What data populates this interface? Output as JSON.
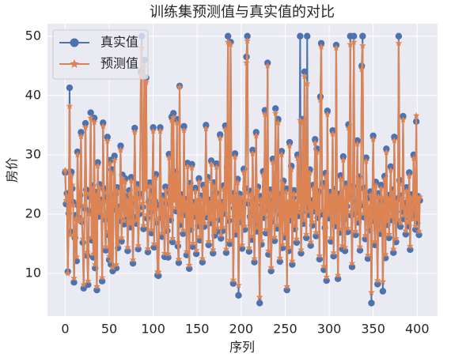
{
  "chart_data": {
    "type": "line",
    "title": "训练集预测值与真实值的对比",
    "xlabel": "序列",
    "ylabel": "房价",
    "xlim": [
      -20.15,
      423.15
    ],
    "ylim": [
      2.8,
      52.1
    ],
    "xticks": [
      0,
      50,
      100,
      150,
      200,
      250,
      300,
      350,
      400
    ],
    "yticks": [
      10,
      20,
      30,
      40,
      50
    ],
    "grid": true,
    "legend": "upper left",
    "x": [
      0,
      1,
      2,
      3,
      4,
      5,
      6,
      7,
      8,
      9,
      10,
      11,
      12,
      13,
      14,
      15,
      16,
      17,
      18,
      19,
      20,
      21,
      22,
      23,
      24,
      25,
      26,
      27,
      28,
      29,
      30,
      31,
      32,
      33,
      34,
      35,
      36,
      37,
      38,
      39,
      40,
      41,
      42,
      43,
      44,
      45,
      46,
      47,
      48,
      49,
      50,
      51,
      52,
      53,
      54,
      55,
      56,
      57,
      58,
      59,
      60,
      61,
      62,
      63,
      64,
      65,
      66,
      67,
      68,
      69,
      70,
      71,
      72,
      73,
      74,
      75,
      76,
      77,
      78,
      79,
      80,
      81,
      82,
      83,
      84,
      85,
      86,
      87,
      88,
      89,
      90,
      91,
      92,
      93,
      94,
      95,
      96,
      97,
      98,
      99,
      100,
      101,
      102,
      103,
      104,
      105,
      106,
      107,
      108,
      109,
      110,
      111,
      112,
      113,
      114,
      115,
      116,
      117,
      118,
      119,
      120,
      121,
      122,
      123,
      124,
      125,
      126,
      127,
      128,
      129,
      130,
      131,
      132,
      133,
      134,
      135,
      136,
      137,
      138,
      139,
      140,
      141,
      142,
      143,
      144,
      145,
      146,
      147,
      148,
      149,
      150,
      151,
      152,
      153,
      154,
      155,
      156,
      157,
      158,
      159,
      160,
      161,
      162,
      163,
      164,
      165,
      166,
      167,
      168,
      169,
      170,
      171,
      172,
      173,
      174,
      175,
      176,
      177,
      178,
      179,
      180,
      181,
      182,
      183,
      184,
      185,
      186,
      187,
      188,
      189,
      190,
      191,
      192,
      193,
      194,
      195,
      196,
      197,
      198,
      199,
      200,
      201,
      202,
      203,
      204,
      205,
      206,
      207,
      208,
      209,
      210,
      211,
      212,
      213,
      214,
      215,
      216,
      217,
      218,
      219,
      220,
      221,
      222,
      223,
      224,
      225,
      226,
      227,
      228,
      229,
      230,
      231,
      232,
      233,
      234,
      235,
      236,
      237,
      238,
      239,
      240,
      241,
      242,
      243,
      244,
      245,
      246,
      247,
      248,
      249,
      250,
      251,
      252,
      253,
      254,
      255,
      256,
      257,
      258,
      259,
      260,
      261,
      262,
      263,
      264,
      265,
      266,
      267,
      268,
      269,
      270,
      271,
      272,
      273,
      274,
      275,
      276,
      277,
      278,
      279,
      280,
      281,
      282,
      283,
      284,
      285,
      286,
      287,
      288,
      289,
      290,
      291,
      292,
      293,
      294,
      295,
      296,
      297,
      298,
      299,
      300,
      301,
      302,
      303,
      304,
      305,
      306,
      307,
      308,
      309,
      310,
      311,
      312,
      313,
      314,
      315,
      316,
      317,
      318,
      319,
      320,
      321,
      322,
      323,
      324,
      325,
      326,
      327,
      328,
      329,
      330,
      331,
      332,
      333,
      334,
      335,
      336,
      337,
      338,
      339,
      340,
      341,
      342,
      343,
      344,
      345,
      346,
      347,
      348,
      349,
      350,
      351,
      352,
      353,
      354,
      355,
      356,
      357,
      358,
      359,
      360,
      361,
      362,
      363,
      364,
      365,
      366,
      367,
      368,
      369,
      370,
      371,
      372,
      373,
      374,
      375,
      376,
      377,
      378,
      379,
      380,
      381,
      382,
      383,
      384,
      385,
      386,
      387,
      388,
      389,
      390,
      391,
      392,
      393,
      394,
      395,
      396,
      397,
      398,
      399,
      400,
      401,
      402,
      403
    ],
    "series": [
      {
        "name": "真实值",
        "color": "#4c72b0",
        "marker": "circle",
        "values": [
          27.0,
          21.7,
          23.5,
          10.3,
          20.1,
          41.3,
          17.0,
          27.1,
          24.3,
          22.0,
          8.5,
          16.0,
          19.8,
          12.1,
          30.5,
          21.4,
          19.3,
          23.2,
          33.8,
          18.7,
          15.2,
          7.5,
          21.0,
          35.3,
          24.1,
          13.0,
          8.1,
          20.5,
          22.9,
          37.1,
          15.6,
          24.8,
          12.7,
          36.2,
          10.9,
          23.7,
          7.2,
          28.7,
          19.6,
          25.0,
          19.9,
          22.4,
          8.7,
          35.4,
          24.3,
          19.1,
          13.9,
          22.8,
          33.0,
          16.5,
          12.3,
          29.1,
          11.5,
          27.5,
          10.4,
          20.8,
          29.8,
          23.3,
          10.9,
          24.5,
          14.3,
          21.2,
          18.9,
          31.5,
          15.4,
          26.6,
          22.2,
          18.3,
          26.0,
          19.2,
          23.0,
          13.8,
          20.6,
          24.0,
          17.8,
          26.2,
          21.9,
          11.7,
          19.5,
          34.5,
          22.6,
          18.4,
          25.0,
          14.1,
          20.0,
          23.4,
          44.0,
          50.0,
          21.2,
          17.5,
          46.0,
          24.7,
          43.0,
          19.3,
          13.6,
          22.1,
          25.3,
          20.4,
          16.8,
          23.9,
          34.6,
          14.4,
          22.2,
          26.7,
          18.6,
          9.7,
          9.6,
          21.5,
          34.6,
          19.4,
          16.2,
          23.1,
          20.0,
          12.8,
          24.6,
          21.8,
          17.2,
          12.7,
          30.1,
          23.6,
          19.0,
          36.4,
          15.3,
          37.0,
          22.8,
          27.1,
          20.5,
          36.0,
          14.6,
          11.8,
          41.6,
          18.2,
          23.3,
          21.1,
          16.7,
          34.8,
          19.9,
          22.5,
          13.1,
          28.6,
          20.7,
          10.8,
          25.2,
          17.4,
          28.4,
          14.5,
          22.0,
          19.6,
          24.4,
          13.3,
          21.7,
          18.0,
          26.0,
          15.6,
          23.1,
          20.3,
          11.9,
          24.9,
          17.9,
          22.7,
          35.0,
          19.5,
          26.2,
          14.8,
          22.4,
          18.5,
          29.0,
          21.0,
          13.4,
          25.3,
          16.4,
          23.6,
          28.5,
          17.1,
          21.3,
          19.1,
          33.4,
          15.9,
          22.0,
          17.2,
          24.8,
          20.1,
          34.9,
          13.5,
          27.8,
          50.0,
          18.9,
          15.0,
          49.0,
          22.6,
          23.5,
          8.3,
          21.0,
          30.2,
          16.6,
          19.8,
          25.9,
          6.3,
          23.4,
          18.7,
          22.1,
          14.2,
          20.9,
          27.6,
          17.4,
          24.3,
          46.5,
          50.0,
          21.8,
          13.7,
          19.6,
          23.9,
          15.7,
          30.8,
          22.5,
          11.9,
          20.4,
          33.8,
          17.1,
          24.6,
          18.3,
          5.0,
          23.0,
          14.9,
          21.5,
          27.2,
          19.4,
          37.5,
          16.8,
          22.9,
          45.5,
          13.2,
          20.6,
          24.1,
          10.4,
          18.8,
          29.3,
          22.4,
          15.5,
          37.8,
          21.7,
          17.6,
          36.0,
          23.3,
          12.0,
          19.9,
          30.6,
          14.3,
          25.6,
          20.7,
          16.1,
          24.3,
          7.2,
          21.4,
          13.8,
          32.1,
          19.0,
          28.1,
          11.5,
          22.8,
          24.0,
          17.5,
          21.1,
          15.2,
          30.0,
          19.7,
          23.6,
          50.0,
          13.4,
          20.3,
          36.0,
          18.4,
          44.0,
          22.7,
          16.0,
          50.0,
          21.2,
          19.9,
          27.5,
          14.7,
          22.3,
          18.1,
          24.9,
          20.5,
          32.6,
          16.3,
          31.0,
          19.4,
          23.8,
          12.4,
          39.8,
          48.8,
          20.0,
          25.2,
          10.6,
          17.7,
          26.9,
          8.8,
          37.4,
          22.0,
          19.3,
          23.7,
          15.4,
          21.9,
          34.1,
          12.9,
          24.2,
          18.0,
          48.5,
          20.9,
          9.1,
          23.4,
          16.9,
          26.5,
          22.6,
          14.1,
          29.7,
          19.1,
          13.8,
          25.1,
          21.3,
          17.0,
          35.1,
          23.0,
          50.0,
          19.8,
          11.1,
          24.7,
          50.0,
          20.2,
          16.5,
          22.1,
          32.4,
          18.6,
          26.3,
          13.9,
          21.5,
          45.0,
          50.0,
          19.5,
          24.4,
          15.8,
          29.5,
          22.7,
          12.5,
          20.6,
          17.3,
          23.8,
          5.0,
          21.1,
          33.2,
          18.9,
          14.8,
          25.4,
          20.0,
          8.2,
          23.5,
          19.6,
          16.7,
          24.9,
          22.2,
          7.0,
          20.3,
          26.4,
          12.6,
          31.0,
          18.2,
          23.2,
          16.0,
          21.8,
          28.0,
          19.0,
          24.1,
          13.5,
          33.0,
          20.8,
          15.3,
          22.6,
          18.5,
          50.0,
          25.7,
          17.9,
          23.1,
          20.4,
          36.5,
          19.2,
          21.6,
          16.6,
          24.5,
          22.0,
          18.0,
          27.0,
          14.0,
          23.3,
          20.1,
          19.7,
          30.0,
          21.4,
          17.4,
          35.6,
          18.5,
          23.0,
          16.5,
          22.3
        ]
      },
      {
        "name": "预测值",
        "color": "#dd8452",
        "marker": "star",
        "values": [
          27.4,
          22.3,
          23.0,
          10.0,
          20.6,
          38.2,
          16.5,
          26.4,
          24.9,
          21.5,
          9.2,
          16.4,
          19.2,
          12.8,
          30.0,
          22.0,
          18.8,
          23.9,
          33.1,
          19.2,
          15.8,
          8.1,
          21.5,
          34.6,
          23.5,
          13.6,
          8.7,
          20.0,
          23.4,
          36.2,
          16.1,
          24.2,
          13.3,
          35.5,
          11.5,
          23.1,
          7.8,
          28.1,
          20.2,
          24.4,
          20.5,
          21.8,
          9.3,
          34.8,
          23.7,
          19.7,
          14.5,
          22.2,
          32.3,
          17.1,
          12.9,
          28.5,
          12.1,
          26.9,
          11.0,
          21.4,
          29.1,
          22.7,
          11.5,
          23.9,
          14.9,
          20.6,
          19.5,
          30.8,
          16.0,
          26.0,
          22.8,
          18.9,
          25.4,
          19.8,
          22.4,
          14.4,
          21.2,
          23.4,
          18.4,
          25.6,
          22.5,
          12.3,
          18.9,
          33.8,
          22.0,
          19.0,
          24.4,
          14.7,
          20.6,
          22.8,
          43.2,
          48.0,
          21.8,
          18.1,
          45.0,
          24.1,
          42.2,
          19.9,
          14.2,
          21.5,
          24.7,
          21.0,
          17.4,
          23.3,
          34.0,
          15.0,
          21.6,
          26.1,
          19.2,
          10.3,
          10.2,
          20.9,
          34.0,
          20.0,
          16.8,
          22.5,
          20.6,
          13.4,
          24.0,
          22.4,
          17.8,
          13.3,
          29.5,
          23.0,
          19.6,
          35.8,
          15.9,
          36.3,
          22.2,
          26.5,
          21.1,
          35.4,
          15.2,
          12.4,
          41.4,
          18.8,
          22.7,
          21.7,
          17.3,
          34.1,
          20.5,
          21.9,
          13.7,
          28.0,
          21.3,
          11.4,
          24.6,
          18.0,
          27.8,
          15.1,
          21.4,
          20.2,
          23.8,
          13.9,
          22.3,
          18.6,
          25.4,
          16.2,
          22.5,
          20.9,
          12.5,
          24.3,
          18.5,
          22.1,
          34.4,
          20.1,
          25.6,
          15.4,
          21.8,
          19.1,
          28.4,
          21.6,
          14.0,
          24.7,
          17.0,
          23.0,
          27.9,
          17.7,
          21.9,
          19.7,
          32.8,
          16.5,
          21.4,
          17.8,
          24.2,
          20.7,
          34.3,
          14.1,
          27.2,
          49.0,
          19.5,
          15.6,
          48.6,
          22.0,
          22.9,
          8.9,
          21.6,
          29.6,
          17.2,
          19.2,
          25.3,
          8.0,
          22.8,
          19.3,
          22.7,
          14.8,
          20.3,
          27.0,
          18.0,
          23.7,
          45.5,
          49.2,
          22.4,
          14.3,
          19.0,
          23.3,
          16.3,
          30.2,
          21.9,
          12.5,
          21.0,
          33.2,
          17.7,
          24.0,
          18.9,
          6.0,
          22.4,
          15.5,
          22.1,
          26.6,
          20.0,
          36.8,
          17.4,
          22.3,
          45.0,
          13.8,
          21.2,
          23.5,
          11.0,
          19.4,
          28.7,
          21.8,
          16.1,
          37.0,
          22.3,
          18.2,
          35.4,
          22.7,
          12.6,
          20.5,
          30.0,
          14.9,
          25.0,
          21.3,
          16.7,
          23.7,
          7.8,
          22.0,
          14.4,
          31.5,
          19.6,
          27.5,
          12.1,
          22.2,
          23.4,
          18.1,
          21.7,
          15.8,
          29.4,
          20.3,
          23.0,
          35.8,
          14.0,
          20.9,
          35.4,
          19.0,
          43.2,
          22.1,
          16.6,
          42.0,
          21.8,
          20.5,
          26.9,
          15.3,
          21.7,
          18.7,
          24.3,
          21.1,
          32.0,
          16.9,
          30.4,
          20.0,
          23.2,
          13.0,
          39.2,
          48.2,
          20.6,
          24.6,
          11.2,
          18.3,
          26.3,
          9.4,
          36.8,
          21.4,
          19.9,
          23.1,
          16.0,
          21.3,
          33.5,
          13.5,
          23.6,
          18.6,
          48.0,
          21.5,
          9.7,
          22.8,
          17.5,
          25.9,
          23.2,
          14.7,
          29.1,
          19.7,
          14.4,
          24.5,
          21.9,
          17.6,
          34.5,
          22.4,
          48.6,
          20.4,
          11.7,
          24.1,
          49.0,
          20.8,
          17.1,
          21.5,
          31.8,
          19.2,
          25.7,
          14.5,
          22.1,
          44.4,
          48.4,
          20.1,
          23.8,
          16.4,
          28.9,
          22.1,
          13.1,
          21.2,
          17.9,
          23.2,
          6.8,
          21.7,
          32.6,
          19.5,
          15.4,
          24.8,
          20.6,
          8.8,
          22.9,
          20.2,
          17.3,
          24.3,
          22.8,
          8.6,
          20.9,
          25.8,
          13.2,
          30.4,
          18.8,
          22.6,
          16.6,
          22.4,
          27.4,
          19.6,
          23.5,
          14.1,
          32.4,
          21.4,
          15.9,
          22.0,
          19.1,
          48.8,
          25.1,
          18.5,
          22.5,
          21.0,
          35.9,
          19.8,
          21.0,
          17.2,
          23.9,
          22.6,
          18.6,
          26.4,
          14.6,
          22.7,
          20.7,
          19.1,
          29.4,
          22.0,
          18.0,
          36.6,
          19.1,
          22.4,
          17.1,
          22.9
        ]
      }
    ]
  }
}
